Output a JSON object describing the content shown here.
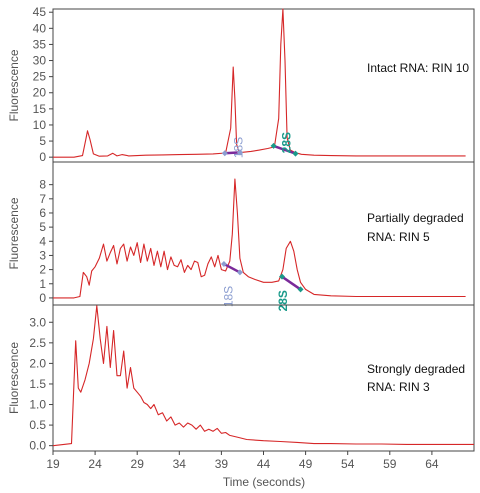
{
  "chart_data": [
    {
      "type": "line",
      "ylabel": "Fluorescence",
      "ylim": [
        -1.5,
        46
      ],
      "yticks": [
        0,
        5,
        10,
        15,
        20,
        25,
        30,
        35,
        40,
        45
      ],
      "annotation": [
        "Intact RNA: RIN 10"
      ],
      "series": [
        {
          "color": "#d62728",
          "x": [
            19,
            21.5,
            22.5,
            22.9,
            23.1,
            23.4,
            23.8,
            24.5,
            25.5,
            26.1,
            26.6,
            27.2,
            28,
            30,
            32,
            34,
            36,
            38,
            39.5,
            40.1,
            40.4,
            40.6,
            40.8,
            41.1,
            41.5,
            42.5,
            43.5,
            44.5,
            45.3,
            45.8,
            46.05,
            46.3,
            46.55,
            46.8,
            47.2,
            47.8,
            48.5,
            50,
            52,
            55,
            60,
            65,
            68
          ],
          "y": [
            0,
            0,
            0.5,
            5.5,
            8.2,
            5.5,
            1.0,
            0.3,
            0.4,
            1.2,
            0.4,
            0.8,
            0.4,
            0.6,
            0.7,
            0.8,
            0.9,
            1.0,
            1.3,
            9.0,
            28.0,
            18.0,
            4.0,
            1.6,
            1.5,
            1.8,
            2.2,
            2.7,
            3.2,
            12.0,
            35.0,
            46.0,
            30.0,
            6.0,
            2.2,
            1.4,
            0.9,
            0.6,
            0.5,
            0.4,
            0.4,
            0.4,
            0.4
          ]
        }
      ],
      "markers": [
        {
          "label": "18S",
          "color": "#8b9dd0",
          "x1": 39.4,
          "y1": 1.2,
          "x2": 41.2,
          "y2": 1.5,
          "label_x": 41.5,
          "label_y": 3.0
        },
        {
          "label": "28S",
          "color": "#1a9a8a",
          "x1": 45.2,
          "y1": 3.5,
          "x2": 47.8,
          "y2": 1.1,
          "label_x": 47.2,
          "label_y": 4.5
        }
      ]
    },
    {
      "type": "line",
      "ylabel": "Fluorescence",
      "ylim": [
        -0.5,
        9.6
      ],
      "yticks": [
        0,
        1,
        2,
        3,
        4,
        5,
        6,
        7,
        8
      ],
      "annotation": [
        "Partially degraded",
        "RNA: RIN 5"
      ],
      "series": [
        {
          "color": "#d62728",
          "x": [
            19,
            21.5,
            22.2,
            22.6,
            23.0,
            23.3,
            23.6,
            24.0,
            24.5,
            25.0,
            25.4,
            25.8,
            26.2,
            26.6,
            27.0,
            27.4,
            27.8,
            28.2,
            28.6,
            29.0,
            29.4,
            29.8,
            30.2,
            30.6,
            31.0,
            31.4,
            31.8,
            32.2,
            32.6,
            33.0,
            33.4,
            33.8,
            34.2,
            34.6,
            35.0,
            35.4,
            35.8,
            36.2,
            36.6,
            37.0,
            37.4,
            37.8,
            38.2,
            38.6,
            39.0,
            39.5,
            40.0,
            40.3,
            40.6,
            40.9,
            41.2,
            41.6,
            42.2,
            43,
            44,
            45,
            45.8,
            46.3,
            46.7,
            47.2,
            47.6,
            48.0,
            48.4,
            49.0,
            50,
            52,
            55,
            60,
            65,
            68
          ],
          "y": [
            0,
            0,
            0.1,
            1.8,
            1.5,
            0.9,
            1.9,
            2.2,
            2.8,
            3.8,
            2.6,
            3.2,
            3.7,
            2.4,
            3.5,
            3.8,
            2.6,
            3.6,
            3.0,
            3.9,
            2.5,
            3.8,
            2.6,
            3.5,
            2.3,
            3.3,
            2.2,
            3.3,
            2.0,
            2.9,
            2.3,
            2.2,
            2.7,
            1.8,
            2.3,
            2.0,
            2.6,
            2.5,
            1.5,
            1.6,
            2.4,
            2.9,
            2.2,
            3.0,
            2.0,
            1.9,
            2.6,
            4.5,
            8.4,
            6.0,
            2.8,
            1.8,
            1.5,
            1.3,
            1.1,
            1.1,
            1.2,
            2.0,
            3.5,
            4.0,
            3.3,
            2.0,
            1.1,
            0.6,
            0.25,
            0.15,
            0.1,
            0.1,
            0.1,
            0.1
          ]
        }
      ],
      "markers": [
        {
          "label": "18S",
          "color": "#8b9dd0",
          "x1": 39.3,
          "y1": 2.4,
          "x2": 41.2,
          "y2": 1.8,
          "label_x": 40.3,
          "label_y": 0.1
        },
        {
          "label": "28S",
          "color": "#1a9a8a",
          "x1": 46.2,
          "y1": 1.5,
          "x2": 48.4,
          "y2": 0.6,
          "label_x": 46.8,
          "label_y": -0.2
        }
      ]
    },
    {
      "type": "line",
      "xlabel": "Time (seconds)",
      "ylabel": "Fluorescence",
      "xlim": [
        19,
        69
      ],
      "xticks": [
        19,
        24,
        29,
        34,
        39,
        44,
        49,
        54,
        59,
        64
      ],
      "ylim": [
        -0.13,
        3.42
      ],
      "yticks": [
        0.0,
        0.5,
        1.0,
        1.5,
        2.0,
        2.5,
        3.0
      ],
      "tick_format": "0.0",
      "annotation": [
        "Strongly degraded",
        "RNA: RIN 3"
      ],
      "series": [
        {
          "color": "#d62728",
          "x": [
            19,
            21.2,
            21.7,
            22.0,
            22.3,
            22.8,
            23.3,
            23.8,
            24.2,
            24.6,
            25.0,
            25.4,
            25.8,
            26.2,
            26.6,
            27.0,
            27.4,
            27.8,
            28.2,
            28.6,
            29.0,
            29.4,
            29.8,
            30.2,
            30.6,
            31.0,
            31.5,
            32.0,
            32.5,
            33.0,
            33.5,
            34.0,
            34.5,
            35.0,
            35.5,
            36.0,
            36.5,
            37.0,
            37.5,
            38.0,
            38.5,
            39.0,
            39.5,
            40.0,
            41.0,
            42.0,
            44,
            46,
            48,
            50,
            52,
            55,
            58,
            61,
            64,
            67,
            69
          ],
          "y": [
            0,
            0.05,
            2.55,
            1.4,
            1.3,
            1.6,
            2.0,
            2.6,
            3.4,
            2.6,
            2.0,
            2.9,
            1.9,
            2.8,
            1.7,
            1.7,
            2.3,
            1.4,
            1.9,
            1.4,
            1.3,
            1.2,
            1.05,
            1.0,
            0.9,
            1.0,
            0.75,
            0.8,
            0.6,
            0.7,
            0.5,
            0.55,
            0.45,
            0.55,
            0.5,
            0.4,
            0.5,
            0.35,
            0.4,
            0.35,
            0.42,
            0.3,
            0.32,
            0.25,
            0.2,
            0.15,
            0.12,
            0.1,
            0.08,
            0.05,
            0.05,
            0.04,
            0.04,
            0.03,
            0.03,
            0.03,
            0.03
          ]
        }
      ],
      "markers": []
    }
  ]
}
